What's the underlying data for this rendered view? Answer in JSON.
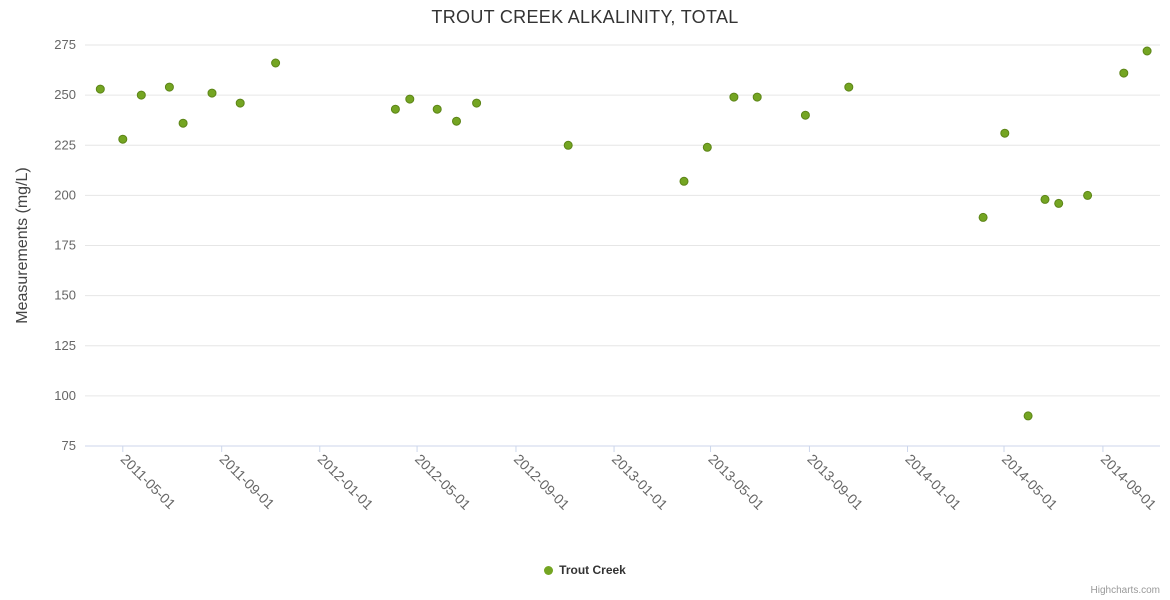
{
  "credits": "Highcharts.com",
  "colors": {
    "point": "#74a522",
    "point_border": "#5c8417",
    "grid": "#e6e6e6",
    "axis_line": "#ccd6eb",
    "tick_mark": "#ccd6eb",
    "tick_label": "#666666",
    "axis_title": "#444444",
    "title": "#333333"
  },
  "chart_data": {
    "type": "scatter",
    "title": "TROUT CREEK ALKALINITY, TOTAL",
    "xlabel": "",
    "ylabel": "Measurements (mg/L)",
    "ylim": [
      75,
      275
    ],
    "y_ticks": [
      75,
      100,
      125,
      150,
      175,
      200,
      225,
      250,
      275
    ],
    "x_range": [
      "2011-03-15",
      "2014-11-11"
    ],
    "x_ticks": [
      "2011-05-01",
      "2011-09-01",
      "2012-01-01",
      "2012-05-01",
      "2012-09-01",
      "2013-01-01",
      "2013-05-01",
      "2013-09-01",
      "2014-01-01",
      "2014-05-01",
      "2014-09-01"
    ],
    "grid": true,
    "legend_position": "bottom",
    "series": [
      {
        "name": "Trout Creek",
        "points": [
          {
            "x": "2011-04-03",
            "y": 253
          },
          {
            "x": "2011-05-01",
            "y": 228
          },
          {
            "x": "2011-05-24",
            "y": 250
          },
          {
            "x": "2011-06-28",
            "y": 254
          },
          {
            "x": "2011-07-15",
            "y": 236
          },
          {
            "x": "2011-08-20",
            "y": 251
          },
          {
            "x": "2011-09-24",
            "y": 246
          },
          {
            "x": "2011-11-07",
            "y": 266
          },
          {
            "x": "2012-04-04",
            "y": 243
          },
          {
            "x": "2012-04-22",
            "y": 248
          },
          {
            "x": "2012-05-26",
            "y": 243
          },
          {
            "x": "2012-06-19",
            "y": 237
          },
          {
            "x": "2012-07-14",
            "y": 246
          },
          {
            "x": "2012-11-05",
            "y": 225
          },
          {
            "x": "2013-03-29",
            "y": 207
          },
          {
            "x": "2013-04-27",
            "y": 224
          },
          {
            "x": "2013-05-30",
            "y": 249
          },
          {
            "x": "2013-06-28",
            "y": 249
          },
          {
            "x": "2013-08-27",
            "y": 240
          },
          {
            "x": "2013-10-20",
            "y": 254
          },
          {
            "x": "2014-04-05",
            "y": 189
          },
          {
            "x": "2014-05-02",
            "y": 231
          },
          {
            "x": "2014-05-31",
            "y": 90
          },
          {
            "x": "2014-06-21",
            "y": 198
          },
          {
            "x": "2014-07-08",
            "y": 196
          },
          {
            "x": "2014-08-13",
            "y": 200
          },
          {
            "x": "2014-09-27",
            "y": 261
          },
          {
            "x": "2014-10-26",
            "y": 272
          }
        ]
      }
    ]
  }
}
